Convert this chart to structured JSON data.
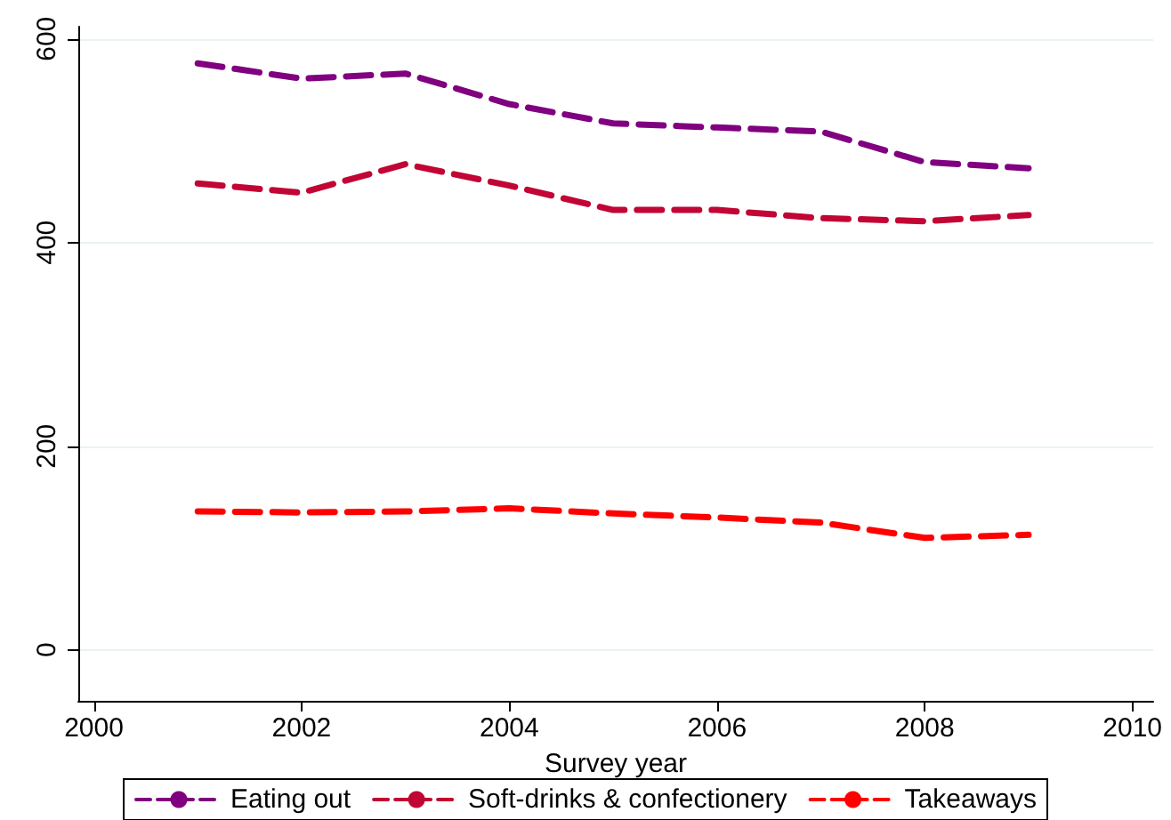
{
  "chart_data": {
    "type": "line",
    "xlabel": "Survey year",
    "x": [
      2001,
      2002,
      2003,
      2004,
      2005,
      2006,
      2007,
      2008,
      2009
    ],
    "series": [
      {
        "name": "Eating out",
        "color": "#800080",
        "values": [
          576,
          561,
          566,
          536,
          517,
          513,
          509,
          479,
          473
        ]
      },
      {
        "name": "Soft-drinks & confectionery",
        "color": "#c10534",
        "values": [
          458,
          449,
          477,
          456,
          432,
          432,
          424,
          421,
          427
        ]
      },
      {
        "name": "Takeaways",
        "color": "#ff0000",
        "values": [
          136,
          135,
          136,
          139,
          134,
          130,
          125,
          110,
          113
        ]
      }
    ],
    "xlim": [
      1999.85,
      2010.2
    ],
    "xticks": [
      2000,
      2002,
      2004,
      2006,
      2008,
      2010
    ],
    "ylim": [
      -50,
      612
    ],
    "yticks": [
      0,
      200,
      400,
      600
    ],
    "grid": "y",
    "legend": "bottom",
    "marker": "none",
    "line_style": "dashed"
  }
}
